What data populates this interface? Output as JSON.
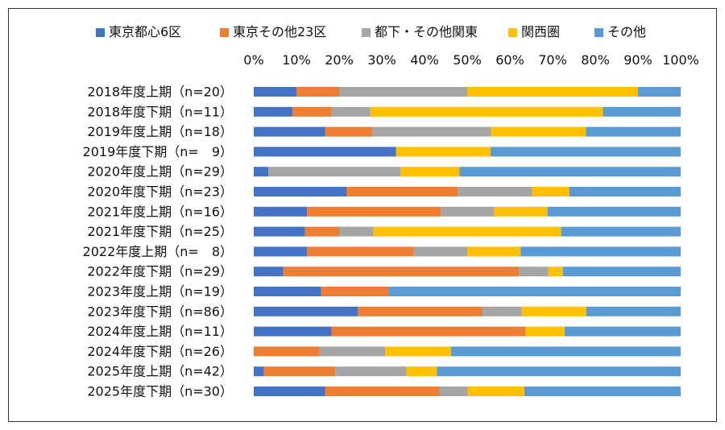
{
  "chart_data": {
    "type": "bar",
    "orientation": "horizontal",
    "stacked": "percent",
    "legend_position": "top",
    "grid": false,
    "xlim": [
      0,
      100
    ],
    "x_ticks": [
      "0%",
      "10%",
      "20%",
      "30%",
      "40%",
      "50%",
      "60%",
      "70%",
      "80%",
      "90%",
      "100%"
    ],
    "categories": [
      "2018年度上期（n=20）",
      "2018年度下期（n=11）",
      "2019年度上期（n=18）",
      "2019年度下期（n=　9）",
      "2020年度上期（n=29）",
      "2020年度下期（n=23）",
      "2021年度上期（n=16）",
      "2021年度下期（n=25）",
      "2022年度上期（n=　8）",
      "2022年度下期（n=29）",
      "2023年度上期（n=19）",
      "2023年度下期（n=86）",
      "2024年度上期（n=11）",
      "2024年度下期（n=26）",
      "2025年度上期（n=42）",
      "2025年度下期（n=30）"
    ],
    "series": [
      {
        "name": "東京都心6区",
        "color": "#4472C4",
        "values": [
          10,
          9.1,
          16.7,
          33.3,
          3.4,
          21.7,
          12.5,
          12,
          12.5,
          6.9,
          15.8,
          24.4,
          18.2,
          0,
          2.4,
          16.7
        ]
      },
      {
        "name": "東京その他23区",
        "color": "#ED7D31",
        "values": [
          10,
          9.1,
          11.1,
          0,
          0,
          26.1,
          31.3,
          8,
          25,
          55.2,
          15.8,
          29.1,
          45.5,
          15.4,
          16.7,
          26.7
        ]
      },
      {
        "name": "都下・その他関東",
        "color": "#A5A5A5",
        "values": [
          30,
          9.1,
          27.8,
          0,
          31,
          17.4,
          12.5,
          8,
          12.5,
          6.9,
          0,
          9.3,
          0,
          15.4,
          16.7,
          6.7
        ]
      },
      {
        "name": "関西圏",
        "color": "#FFC000",
        "values": [
          40,
          54.5,
          22.2,
          22.2,
          13.8,
          8.7,
          12.5,
          44,
          12.5,
          3.4,
          0,
          15.1,
          9.1,
          15.4,
          7.1,
          13.3
        ]
      },
      {
        "name": "その他",
        "color": "#5B9BD5",
        "values": [
          10,
          18.2,
          22.2,
          44.5,
          51.8,
          26.1,
          31.2,
          28,
          37.5,
          27.6,
          68.4,
          22.1,
          27.2,
          53.8,
          57.1,
          36.6
        ]
      }
    ]
  }
}
